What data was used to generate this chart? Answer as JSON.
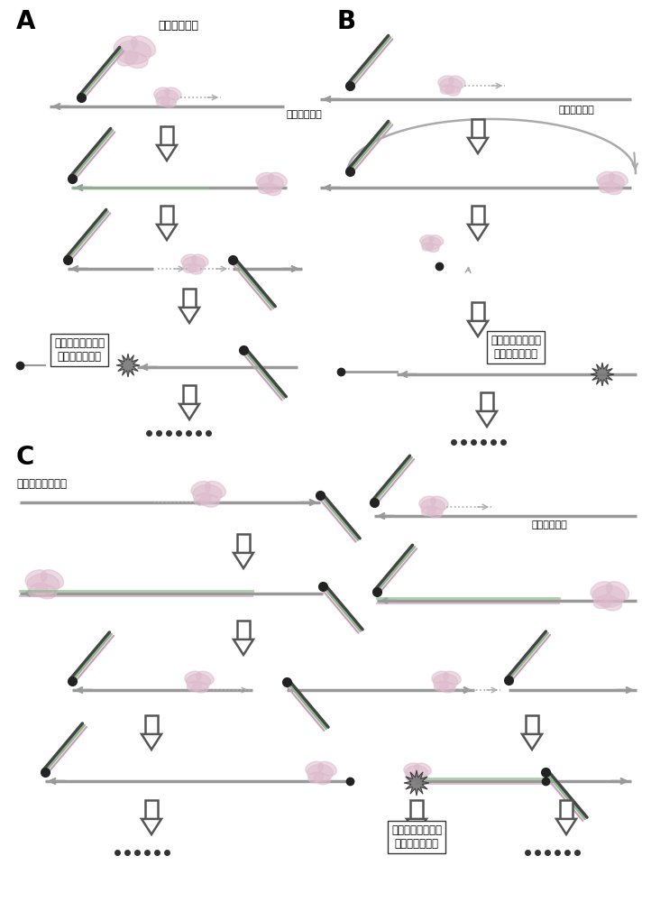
{
  "bg_color": "#ffffff",
  "dc": "#444444",
  "lc": "#999999",
  "gc": "#88bb88",
  "pc": "#cc99bb",
  "ac": "#aaaaaa",
  "bc": "#cccccc",
  "label_A": "A",
  "label_B": "B",
  "label_C": "C",
  "text_enzyme": "核苷酸聚合酶",
  "text_target_A": "目标核酸序列",
  "text_target_B": "目标核酸序列",
  "text_complement": "目标核酸互补序列",
  "text_target_C": "目标核酸序列",
  "text_reaction": "发生链置换，淬灭\n消失，荧光产生"
}
